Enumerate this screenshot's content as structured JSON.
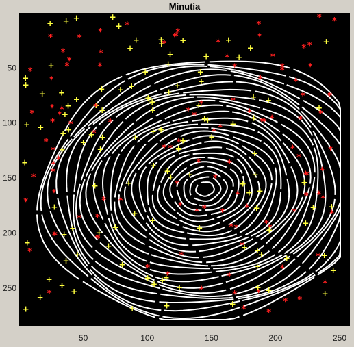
{
  "figure": {
    "title": "Minutia",
    "background": "#d4d0c8",
    "axes_background": "#000000"
  },
  "image": {
    "description_colors": {
      "ridges": "#ffffff",
      "ridge_endings_marker": "#ff2020",
      "bifurcation_marker": "#ffff40"
    },
    "x_ticks": [
      "50",
      "100",
      "150",
      "200",
      "250"
    ],
    "y_ticks": [
      "50",
      "100",
      "150",
      "200",
      "250"
    ],
    "x_range": [
      0,
      258
    ],
    "y_range": [
      0,
      285
    ],
    "markers": {
      "red_star": "*",
      "yellow_plus": "+"
    }
  }
}
